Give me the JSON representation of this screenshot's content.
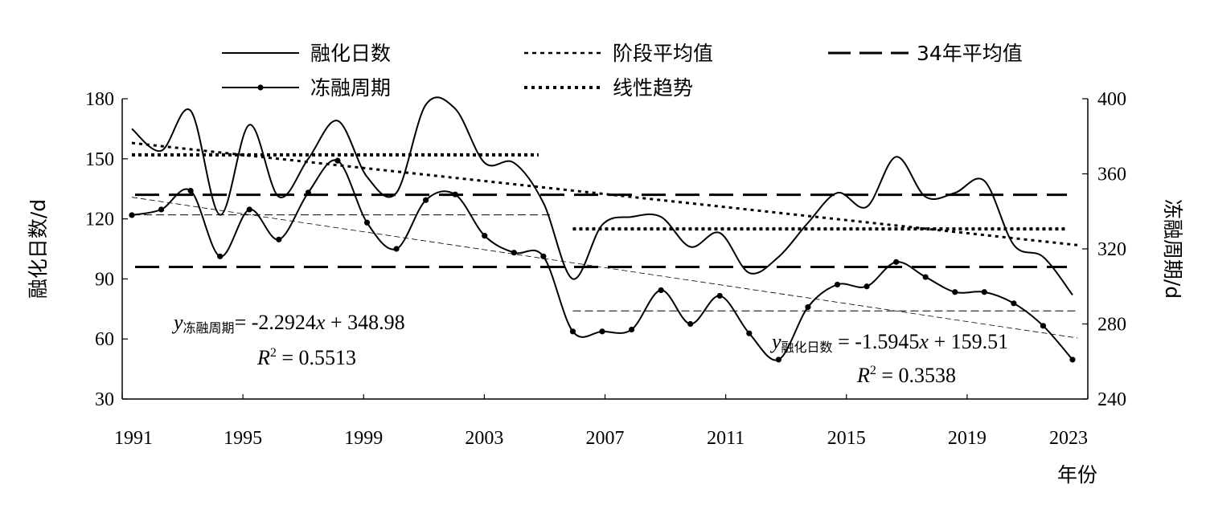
{
  "chart_data": {
    "type": "line",
    "x_ticks": [
      "1991",
      "1995",
      "1999",
      "2003",
      "2007",
      "2011",
      "2015",
      "2019",
      "2023"
    ],
    "xlabel": "年份",
    "ylabel_left": "融化日数/d",
    "ylabel_right": "冻融周期/d",
    "y_left_ticks": [
      "180",
      "150",
      "120",
      "90",
      "60",
      "30"
    ],
    "y_right_ticks": [
      "400",
      "360",
      "320",
      "280",
      "240"
    ],
    "y_left_range": [
      30,
      180
    ],
    "y_right_range": [
      240,
      400
    ],
    "x_range": [
      1991,
      2023
    ],
    "legend_placement": "top",
    "legend": [
      {
        "label": "融化日数",
        "style": "solid"
      },
      {
        "label": "阶段平均值",
        "style": "dotted-thin"
      },
      {
        "label": "34年平均值",
        "style": "long-dash"
      },
      {
        "label": "冻融周期",
        "style": "solid-marker"
      },
      {
        "label": "线性趋势",
        "style": "dotted-thick"
      }
    ],
    "series": [
      {
        "name": "融化日数",
        "axis": "left",
        "x": [
          1991,
          1992,
          1993,
          1994,
          1995,
          1996,
          1997,
          1998,
          1999,
          2000,
          2001,
          2002,
          2003,
          2004,
          2005,
          2006,
          2007,
          2008,
          2009,
          2010,
          2011,
          2012,
          2013,
          2014,
          2015,
          2016,
          2017,
          2018,
          2019,
          2020,
          2021,
          2022,
          2023
        ],
        "values": [
          165,
          154,
          174,
          122,
          167,
          131,
          150,
          169,
          141,
          133,
          177,
          175,
          148,
          148,
          128,
          90,
          117,
          121,
          121,
          106,
          113,
          93,
          101,
          118,
          133,
          126,
          151,
          131,
          133,
          139,
          107,
          101,
          82
        ]
      },
      {
        "name": "冻融周期",
        "axis": "right",
        "x": [
          1991,
          1992,
          1993,
          1994,
          1995,
          1996,
          1997,
          1998,
          1999,
          2000,
          2001,
          2002,
          2003,
          2004,
          2005,
          2006,
          2007,
          2008,
          2009,
          2010,
          2011,
          2012,
          2013,
          2014,
          2015,
          2016,
          2017,
          2018,
          2019,
          2020,
          2021,
          2022,
          2023
        ],
        "values": [
          338,
          341,
          351,
          316,
          341,
          325,
          350,
          367,
          334,
          320,
          346,
          349,
          327,
          318,
          316,
          276,
          276,
          277,
          298,
          280,
          295,
          275,
          261,
          289,
          301,
          300,
          313,
          305,
          297,
          297,
          291,
          279,
          261
        ]
      }
    ],
    "stage_means": [
      {
        "series": "融化日数",
        "x": [
          1991,
          2005
        ],
        "value": 152
      },
      {
        "series": "融化日数",
        "x": [
          2006,
          2023
        ],
        "value": 115
      },
      {
        "series": "冻融周期",
        "x": [
          1991,
          2005
        ],
        "value": 122
      },
      {
        "series": "冻融周期",
        "x": [
          2006,
          2023
        ],
        "value": 74
      }
    ],
    "long_term_means": [
      {
        "series": "融化日数",
        "value": 132
      },
      {
        "series": "冻融周期",
        "value": 96
      }
    ],
    "trend_lines": [
      {
        "series": "融化日数",
        "x": [
          1991,
          2023
        ],
        "y": [
          157.92,
          106.9
        ]
      },
      {
        "series": "冻融周期",
        "x": [
          1991,
          2023
        ],
        "y": [
          130.8,
          60.5
        ]
      }
    ],
    "annotations": {
      "eq1": {
        "y": "y",
        "sub": "冻融周期",
        "rhs": "= -2.2924",
        "x": "x",
        "tail": " + 348.98"
      },
      "r1": {
        "R": "R",
        "sup": "2",
        "rhs": " = 0.5513"
      },
      "eq2": {
        "y": "y",
        "sub": "融化日数",
        "rhs": " = -1.5945",
        "x": "x",
        "tail": " + 159.51"
      },
      "r2": {
        "R": "R",
        "sup": "2",
        "rhs": " = 0.3538"
      }
    }
  }
}
